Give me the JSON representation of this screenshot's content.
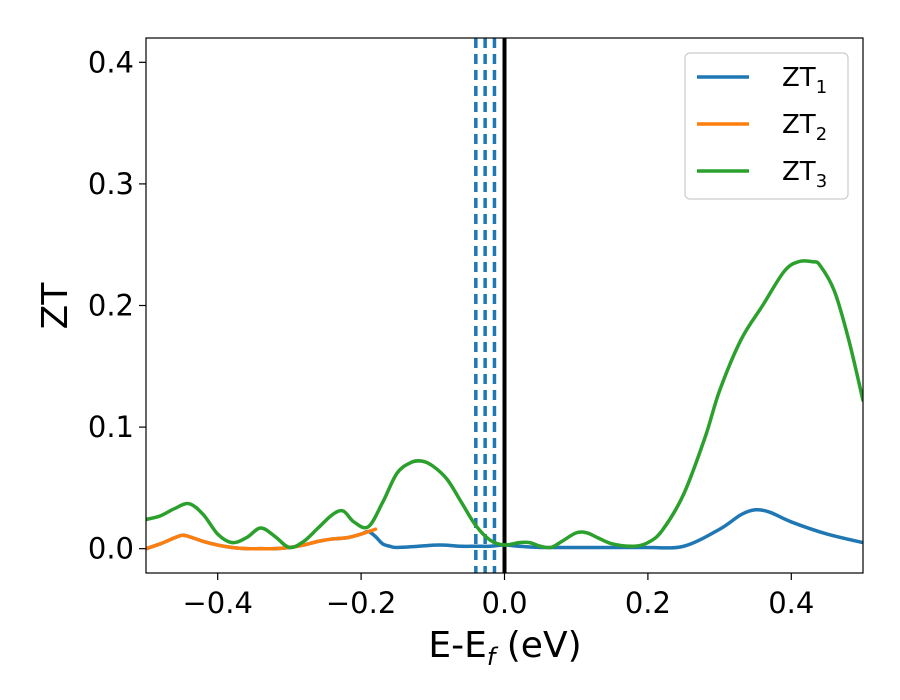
{
  "colors": {
    "zt1": "#1f77b4",
    "zt2": "#ff7f0e",
    "zt3": "#2ca02c",
    "fermi_line": "#000000",
    "dashed_lines": "#1f77b4"
  },
  "chart_data": {
    "type": "line",
    "xlabel": "E-E",
    "xlabel_sub": "f",
    "xlabel_unit": " (eV)",
    "ylabel": "ZT",
    "xlim": [
      -0.5,
      0.5
    ],
    "ylim": [
      -0.02,
      0.42
    ],
    "x_ticks": [
      -0.4,
      -0.2,
      0.0,
      0.2,
      0.4
    ],
    "x_tick_labels": [
      "−0.4",
      "−0.2",
      "0.0",
      "0.2",
      "0.4"
    ],
    "y_ticks": [
      0.0,
      0.1,
      0.2,
      0.3,
      0.4
    ],
    "y_tick_labels": [
      "0.0",
      "0.1",
      "0.2",
      "0.3",
      "0.4"
    ],
    "grid": false,
    "legend_position": "top-right",
    "vertical_lines": [
      {
        "x": -0.04,
        "style": "dashed"
      },
      {
        "x": -0.027,
        "style": "dashed"
      },
      {
        "x": -0.014,
        "style": "dashed"
      },
      {
        "x": 0.0,
        "style": "solid"
      }
    ],
    "series": [
      {
        "name": "ZT",
        "name_sub": "1",
        "key": "zt1",
        "x": [
          -0.5,
          -0.48,
          -0.46,
          -0.45,
          -0.44,
          -0.42,
          -0.4,
          -0.38,
          -0.36,
          -0.34,
          -0.32,
          -0.3,
          -0.28,
          -0.26,
          -0.24,
          -0.22,
          -0.2,
          -0.19,
          -0.18,
          -0.17,
          -0.16,
          -0.15,
          -0.12,
          -0.09,
          -0.06,
          -0.04,
          -0.02,
          0.0,
          0.02,
          0.05,
          0.1,
          0.15,
          0.2,
          0.25,
          0.3,
          0.33,
          0.35,
          0.37,
          0.4,
          0.45,
          0.5
        ],
        "y": [
          0.0,
          0.004,
          0.009,
          0.011,
          0.01,
          0.006,
          0.003,
          0.001,
          0.0,
          0.0,
          0.0,
          0.001,
          0.003,
          0.006,
          0.008,
          0.009,
          0.012,
          0.014,
          0.01,
          0.004,
          0.002,
          0.001,
          0.002,
          0.003,
          0.002,
          0.002,
          0.002,
          0.003,
          0.002,
          0.001,
          0.001,
          0.001,
          0.001,
          0.002,
          0.016,
          0.028,
          0.032,
          0.03,
          0.022,
          0.012,
          0.005
        ]
      },
      {
        "name": "ZT",
        "name_sub": "2",
        "key": "zt2",
        "x": [
          -0.5,
          -0.48,
          -0.46,
          -0.45,
          -0.44,
          -0.42,
          -0.4,
          -0.38,
          -0.36,
          -0.34,
          -0.32,
          -0.3,
          -0.28,
          -0.26,
          -0.24,
          -0.22,
          -0.2,
          -0.19,
          -0.18
        ],
        "y": [
          0.0,
          0.004,
          0.009,
          0.011,
          0.01,
          0.006,
          0.003,
          0.001,
          0.0,
          0.0,
          0.0,
          0.001,
          0.003,
          0.006,
          0.008,
          0.009,
          0.012,
          0.014,
          0.016
        ]
      },
      {
        "name": "ZT",
        "name_sub": "3",
        "key": "zt3",
        "x": [
          -0.5,
          -0.48,
          -0.46,
          -0.44,
          -0.42,
          -0.4,
          -0.38,
          -0.36,
          -0.34,
          -0.32,
          -0.3,
          -0.28,
          -0.26,
          -0.24,
          -0.225,
          -0.21,
          -0.19,
          -0.17,
          -0.15,
          -0.13,
          -0.115,
          -0.1,
          -0.08,
          -0.06,
          -0.04,
          -0.02,
          0.0,
          0.02,
          0.035,
          0.05,
          0.065,
          0.08,
          0.1,
          0.115,
          0.13,
          0.15,
          0.18,
          0.2,
          0.22,
          0.25,
          0.28,
          0.3,
          0.33,
          0.36,
          0.39,
          0.41,
          0.43,
          0.44,
          0.46,
          0.48,
          0.5
        ],
        "y": [
          0.024,
          0.027,
          0.033,
          0.037,
          0.028,
          0.012,
          0.005,
          0.009,
          0.017,
          0.01,
          0.001,
          0.006,
          0.017,
          0.028,
          0.031,
          0.022,
          0.018,
          0.038,
          0.062,
          0.071,
          0.072,
          0.068,
          0.057,
          0.038,
          0.019,
          0.007,
          0.003,
          0.005,
          0.005,
          0.002,
          0.001,
          0.006,
          0.013,
          0.013,
          0.009,
          0.004,
          0.002,
          0.005,
          0.015,
          0.045,
          0.092,
          0.13,
          0.172,
          0.2,
          0.228,
          0.236,
          0.236,
          0.233,
          0.212,
          0.172,
          0.122
        ]
      }
    ]
  }
}
